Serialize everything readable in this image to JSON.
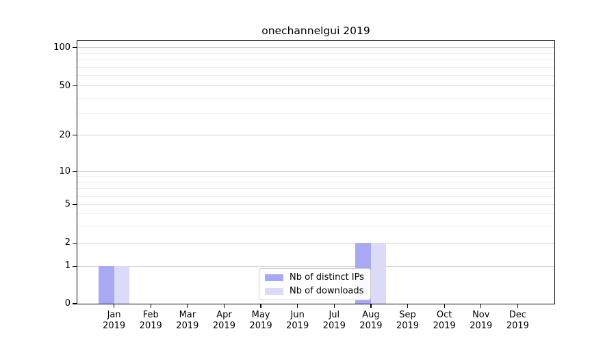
{
  "chart_data": {
    "type": "bar",
    "title": "onechannelgui 2019",
    "x": {
      "categories": [
        "Jan",
        "Feb",
        "Mar",
        "Apr",
        "May",
        "Jun",
        "Jul",
        "Aug",
        "Sep",
        "Oct",
        "Nov",
        "Dec"
      ],
      "sublabel": "2019"
    },
    "series": [
      {
        "name": "Nb of distinct IPs",
        "color": "#a9a9f3",
        "values": [
          1,
          0,
          0,
          0,
          0,
          0,
          0,
          2,
          0,
          0,
          0,
          0
        ]
      },
      {
        "name": "Nb of downloads",
        "color": "#dbdbf8",
        "values": [
          1,
          0,
          0,
          0,
          0,
          0,
          0,
          2,
          0,
          0,
          0,
          0
        ]
      }
    ],
    "y_axis": {
      "scale": "symlog",
      "ylim": [
        0,
        113
      ],
      "major_ticks": [
        {
          "value": 0,
          "label": "0",
          "pos": 0.0
        },
        {
          "value": 1,
          "label": "1",
          "pos": 0.1424
        },
        {
          "value": 2,
          "label": "2",
          "pos": 0.231
        },
        {
          "value": 5,
          "label": "5",
          "pos": 0.3776
        },
        {
          "value": 10,
          "label": "10",
          "pos": 0.5034
        },
        {
          "value": 20,
          "label": "20",
          "pos": 0.6414
        },
        {
          "value": 50,
          "label": "50",
          "pos": 0.8289
        },
        {
          "value": 100,
          "label": "100",
          "pos": 0.9747
        }
      ],
      "minor_ticks": [
        {
          "value": 3,
          "pos": 0.2948
        },
        {
          "value": 4,
          "pos": 0.3414
        },
        {
          "value": 6,
          "pos": 0.408
        },
        {
          "value": 7,
          "pos": 0.4385
        },
        {
          "value": 8,
          "pos": 0.4627
        },
        {
          "value": 9,
          "pos": 0.4842
        },
        {
          "value": 30,
          "pos": 0.7245
        },
        {
          "value": 40,
          "pos": 0.7833
        },
        {
          "value": 60,
          "pos": 0.8672
        },
        {
          "value": 70,
          "pos": 0.8997
        },
        {
          "value": 80,
          "pos": 0.9279
        },
        {
          "value": 90,
          "pos": 0.9526
        }
      ]
    },
    "grid": {
      "major_color": "#cfcfcf",
      "minor_color": "#ededed"
    },
    "axis_color": "#000000",
    "legend": {
      "entries": [
        "Nb of distinct IPs",
        "Nb of downloads"
      ],
      "location": "lower center"
    }
  }
}
